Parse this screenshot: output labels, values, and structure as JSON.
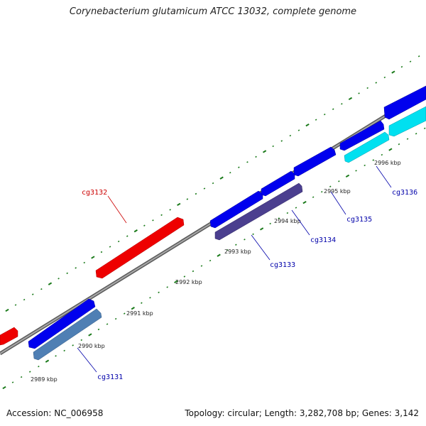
{
  "title": "Corynebacterium glutamicum ATCC 13032, complete genome",
  "footer": {
    "accession": "Accession: NC_006958",
    "summary": "Topology: circular; Length: 3,282,708 bp; Genes: 3,142"
  },
  "colors": {
    "backbone": "#8a8a8a",
    "forward_gene": "#0000ee",
    "reverse_gene_red": "#ee0000",
    "cg3131": "#4f7fb4",
    "cg3133": "#4b3f8f",
    "cg3136": "#00e0f0",
    "ticks": "#1a7a1a",
    "gene_label": "#0000aa",
    "gene_label_red": "#cc0000"
  },
  "kbp_labels": [
    {
      "kbp": 2989,
      "text": "2989 kbp"
    },
    {
      "kbp": 2990,
      "text": "2990 kbp"
    },
    {
      "kbp": 2991,
      "text": "2991 kbp"
    },
    {
      "kbp": 2992,
      "text": "2992 kbp"
    },
    {
      "kbp": 2993,
      "text": "2993 kbp"
    },
    {
      "kbp": 2994,
      "text": "2994 kbp"
    },
    {
      "kbp": 2995,
      "text": "2995 kbp"
    },
    {
      "kbp": 2996,
      "text": "2996 kbp"
    }
  ],
  "gene_labels": [
    "cg3131",
    "cg3132",
    "cg3133",
    "cg3134",
    "cg3135",
    "cg3136"
  ]
}
